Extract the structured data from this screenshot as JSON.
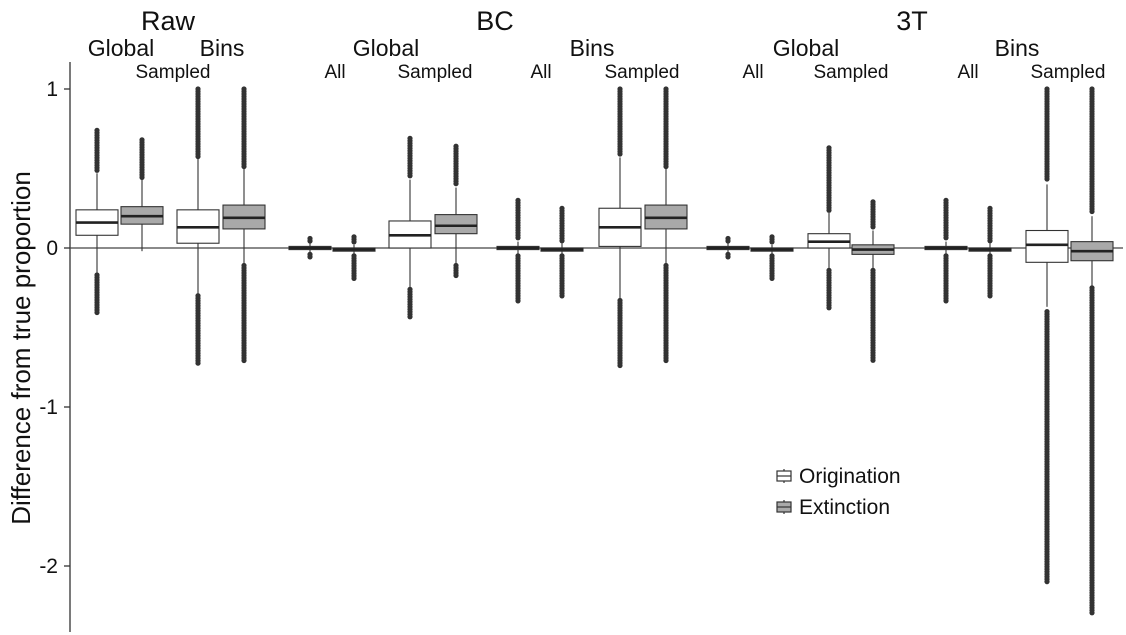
{
  "chart_data": {
    "type": "box",
    "ylabel": "Difference from true proportion",
    "ylim": [
      -2.4,
      1.2
    ],
    "yticks": [
      1,
      0,
      -1,
      -2
    ],
    "ytick_labels": [
      "1",
      "0",
      "-1",
      "-2"
    ],
    "reference_line": 0,
    "grid": false,
    "legend_position": "bottom-right",
    "series": [
      {
        "name": "Origination",
        "fill": "#ffffff"
      },
      {
        "name": "Extinction",
        "fill": "#a9a9a9"
      }
    ],
    "panels": [
      {
        "title": "Raw"
      },
      {
        "title": "BC"
      },
      {
        "title": "3T"
      }
    ],
    "group_labels": [
      {
        "panel": 0,
        "text": "Global"
      },
      {
        "panel": 0,
        "text": "Bins"
      },
      {
        "panel": 1,
        "text": "Global"
      },
      {
        "panel": 1,
        "text": "Bins"
      },
      {
        "panel": 2,
        "text": "Global"
      },
      {
        "panel": 2,
        "text": "Bins"
      }
    ],
    "category_labels": [
      {
        "panel": 0,
        "group": "Global",
        "text": "Sampled"
      },
      {
        "panel": 1,
        "group": "Global",
        "text": "All"
      },
      {
        "panel": 1,
        "group": "Global",
        "text": "Sampled"
      },
      {
        "panel": 1,
        "group": "Bins",
        "text": "All"
      },
      {
        "panel": 1,
        "group": "Bins",
        "text": "Sampled"
      },
      {
        "panel": 2,
        "group": "Global",
        "text": "All"
      },
      {
        "panel": 2,
        "group": "Global",
        "text": "Sampled"
      },
      {
        "panel": 2,
        "group": "Bins",
        "text": "All"
      },
      {
        "panel": 2,
        "group": "Bins",
        "text": "Sampled"
      }
    ],
    "boxes": [
      {
        "panel": "Raw",
        "group": "Global",
        "subset": "Sampled",
        "series": "Origination",
        "q1": 0.08,
        "median": 0.16,
        "q3": 0.24,
        "whisker_low": -0.16,
        "whisker_high": 0.47,
        "outlier_low_max": -0.17,
        "outlier_low_min": -0.42,
        "outlier_high_min": 0.48,
        "outlier_high_max": 0.74
      },
      {
        "panel": "Raw",
        "group": "Global",
        "subset": "Sampled",
        "series": "Extinction",
        "q1": 0.15,
        "median": 0.2,
        "q3": 0.26,
        "whisker_low": -0.02,
        "whisker_high": 0.43,
        "outlier_low_max": null,
        "outlier_low_min": null,
        "outlier_high_min": 0.44,
        "outlier_high_max": 0.68
      },
      {
        "panel": "Raw",
        "group": "Bins",
        "subset": "Sampled",
        "series": "Origination",
        "q1": 0.03,
        "median": 0.13,
        "q3": 0.24,
        "whisker_low": -0.29,
        "whisker_high": 0.56,
        "outlier_low_max": -0.3,
        "outlier_low_min": -0.74,
        "outlier_high_min": 0.57,
        "outlier_high_max": 1.0
      },
      {
        "panel": "Raw",
        "group": "Bins",
        "subset": "Sampled",
        "series": "Extinction",
        "q1": 0.12,
        "median": 0.19,
        "q3": 0.27,
        "whisker_low": -0.1,
        "whisker_high": 0.5,
        "outlier_low_max": -0.11,
        "outlier_low_min": -0.72,
        "outlier_high_min": 0.51,
        "outlier_high_max": 1.0
      },
      {
        "panel": "BC",
        "group": "Global",
        "subset": "All",
        "series": "Origination",
        "q1": -0.01,
        "median": 0.0,
        "q3": 0.01,
        "whisker_low": -0.03,
        "whisker_high": 0.03,
        "outlier_low_max": -0.04,
        "outlier_low_min": -0.06,
        "outlier_high_min": 0.04,
        "outlier_high_max": 0.06
      },
      {
        "panel": "BC",
        "group": "Global",
        "subset": "All",
        "series": "Extinction",
        "q1": -0.02,
        "median": -0.01,
        "q3": 0.0,
        "whisker_low": -0.04,
        "whisker_high": 0.02,
        "outlier_low_max": -0.05,
        "outlier_low_min": -0.2,
        "outlier_high_min": 0.03,
        "outlier_high_max": 0.07
      },
      {
        "panel": "BC",
        "group": "Global",
        "subset": "Sampled",
        "series": "Origination",
        "q1": 0.0,
        "median": 0.08,
        "q3": 0.17,
        "whisker_low": -0.25,
        "whisker_high": 0.43,
        "outlier_low_max": -0.26,
        "outlier_low_min": -0.44,
        "outlier_high_min": 0.44,
        "outlier_high_max": 0.69
      },
      {
        "panel": "BC",
        "group": "Global",
        "subset": "Sampled",
        "series": "Extinction",
        "q1": 0.09,
        "median": 0.14,
        "q3": 0.21,
        "whisker_low": -0.1,
        "whisker_high": 0.38,
        "outlier_low_max": -0.11,
        "outlier_low_min": -0.18,
        "outlier_high_min": 0.39,
        "outlier_high_max": 0.64
      },
      {
        "panel": "BC",
        "group": "Bins",
        "subset": "All",
        "series": "Origination",
        "q1": -0.01,
        "median": 0.0,
        "q3": 0.01,
        "whisker_low": -0.04,
        "whisker_high": 0.04,
        "outlier_low_max": -0.05,
        "outlier_low_min": -0.34,
        "outlier_high_min": 0.05,
        "outlier_high_max": 0.3
      },
      {
        "panel": "BC",
        "group": "Bins",
        "subset": "All",
        "series": "Extinction",
        "q1": -0.02,
        "median": -0.01,
        "q3": 0.0,
        "whisker_low": -0.04,
        "whisker_high": 0.03,
        "outlier_low_max": -0.05,
        "outlier_low_min": -0.31,
        "outlier_high_min": 0.04,
        "outlier_high_max": 0.25
      },
      {
        "panel": "BC",
        "group": "Bins",
        "subset": "Sampled",
        "series": "Origination",
        "q1": 0.01,
        "median": 0.13,
        "q3": 0.25,
        "whisker_low": -0.32,
        "whisker_high": 0.57,
        "outlier_low_max": -0.33,
        "outlier_low_min": -0.74,
        "outlier_high_min": 0.58,
        "outlier_high_max": 1.0
      },
      {
        "panel": "BC",
        "group": "Bins",
        "subset": "Sampled",
        "series": "Extinction",
        "q1": 0.12,
        "median": 0.19,
        "q3": 0.27,
        "whisker_low": -0.1,
        "whisker_high": 0.5,
        "outlier_low_max": -0.11,
        "outlier_low_min": -0.72,
        "outlier_high_min": 0.51,
        "outlier_high_max": 1.0
      },
      {
        "panel": "3T",
        "group": "Global",
        "subset": "All",
        "series": "Origination",
        "q1": -0.01,
        "median": 0.0,
        "q3": 0.01,
        "whisker_low": -0.03,
        "whisker_high": 0.03,
        "outlier_low_max": -0.04,
        "outlier_low_min": -0.06,
        "outlier_high_min": 0.04,
        "outlier_high_max": 0.06
      },
      {
        "panel": "3T",
        "group": "Global",
        "subset": "All",
        "series": "Extinction",
        "q1": -0.02,
        "median": -0.01,
        "q3": 0.0,
        "whisker_low": -0.04,
        "whisker_high": 0.02,
        "outlier_low_max": -0.05,
        "outlier_low_min": -0.2,
        "outlier_high_min": 0.03,
        "outlier_high_max": 0.07
      },
      {
        "panel": "3T",
        "group": "Global",
        "subset": "Sampled",
        "series": "Origination",
        "q1": 0.0,
        "median": 0.04,
        "q3": 0.09,
        "whisker_low": -0.13,
        "whisker_high": 0.22,
        "outlier_low_max": -0.14,
        "outlier_low_min": -0.38,
        "outlier_high_min": 0.23,
        "outlier_high_max": 0.63
      },
      {
        "panel": "3T",
        "group": "Global",
        "subset": "Sampled",
        "series": "Extinction",
        "q1": -0.04,
        "median": -0.01,
        "q3": 0.02,
        "whisker_low": -0.13,
        "whisker_high": 0.11,
        "outlier_low_max": -0.14,
        "outlier_low_min": -0.72,
        "outlier_high_min": 0.12,
        "outlier_high_max": 0.29
      },
      {
        "panel": "3T",
        "group": "Bins",
        "subset": "All",
        "series": "Origination",
        "q1": -0.01,
        "median": 0.0,
        "q3": 0.01,
        "whisker_low": -0.04,
        "whisker_high": 0.04,
        "outlier_low_max": -0.05,
        "outlier_low_min": -0.34,
        "outlier_high_min": 0.05,
        "outlier_high_max": 0.3
      },
      {
        "panel": "3T",
        "group": "Bins",
        "subset": "All",
        "series": "Extinction",
        "q1": -0.02,
        "median": -0.01,
        "q3": 0.0,
        "whisker_low": -0.04,
        "whisker_high": 0.03,
        "outlier_low_max": -0.05,
        "outlier_low_min": -0.31,
        "outlier_high_min": 0.04,
        "outlier_high_max": 0.25
      },
      {
        "panel": "3T",
        "group": "Bins",
        "subset": "Sampled",
        "series": "Origination",
        "q1": -0.09,
        "median": 0.02,
        "q3": 0.11,
        "whisker_low": -0.37,
        "whisker_high": 0.4,
        "outlier_low_max": -0.4,
        "outlier_low_min": -2.1,
        "outlier_high_min": 0.42,
        "outlier_high_max": 1.0
      },
      {
        "panel": "3T",
        "group": "Bins",
        "subset": "Sampled",
        "series": "Extinction",
        "q1": -0.08,
        "median": -0.02,
        "q3": 0.04,
        "whisker_low": -0.24,
        "whisker_high": 0.2,
        "outlier_low_max": -0.25,
        "outlier_low_min": -2.3,
        "outlier_high_min": 0.22,
        "outlier_high_max": 1.0
      }
    ]
  }
}
